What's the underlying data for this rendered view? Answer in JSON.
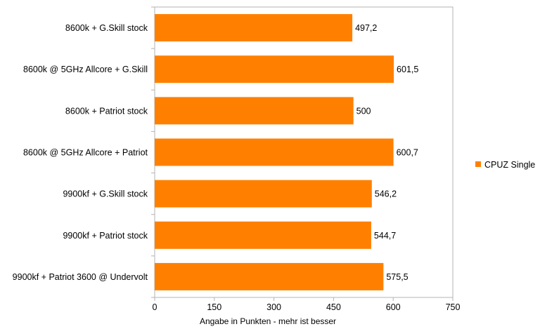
{
  "chart_data": {
    "type": "bar",
    "orientation": "horizontal",
    "categories": [
      "8600k + G.Skill stock",
      "8600k @ 5GHz Allcore + G.Skill",
      "8600k + Patriot stock",
      "8600k @ 5GHz Allcore + Patriot",
      "9900kf + G.Skill stock",
      "9900kf + Patriot stock",
      "9900kf + Patriot 3600 @ Undervolt"
    ],
    "series": [
      {
        "name": "CPUZ Single",
        "color": "#ff8000",
        "values": [
          497.2,
          601.5,
          500,
          600.7,
          546.2,
          544.7,
          575.5
        ],
        "value_labels": [
          "497,2",
          "601,5",
          "500",
          "600,7",
          "546,2",
          "544,7",
          "575,5"
        ]
      }
    ],
    "xlim": [
      0,
      750
    ],
    "xticks": [
      0,
      150,
      300,
      450,
      600,
      750
    ],
    "xlabel": "Angabe in Punkten - mehr ist besser",
    "legend_position": "right",
    "grid": false
  }
}
